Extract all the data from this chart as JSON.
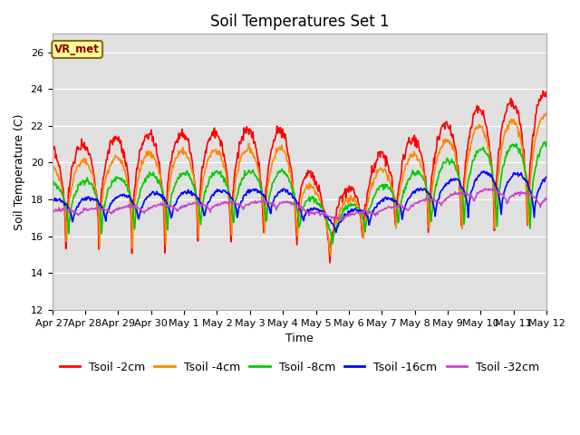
{
  "title": "Soil Temperatures Set 1",
  "xlabel": "Time",
  "ylabel": "Soil Temperature (C)",
  "ylim": [
    12,
    27
  ],
  "yticks": [
    12,
    14,
    16,
    18,
    20,
    22,
    24,
    26
  ],
  "background_color": "#ffffff",
  "plot_bg_color": "#e0e0e0",
  "annotation_label": "VR_met",
  "line_colors": {
    "2cm": "#ff0000",
    "4cm": "#ff8800",
    "8cm": "#00cc00",
    "16cm": "#0000ff",
    "32cm": "#cc44cc"
  },
  "legend_labels": [
    "Tsoil -2cm",
    "Tsoil -4cm",
    "Tsoil -8cm",
    "Tsoil -16cm",
    "Tsoil -32cm"
  ],
  "x_tick_labels": [
    "Apr 27",
    "Apr 28",
    "Apr 29",
    "Apr 30",
    "May 1",
    "May 2",
    "May 3",
    "May 4",
    "May 5",
    "May 6",
    "May 7",
    "May 8",
    "May 9",
    "May 10",
    "May 11",
    "May 12"
  ],
  "n_days": 16,
  "pts_per_day": 48,
  "title_fontsize": 12,
  "axis_label_fontsize": 9,
  "tick_fontsize": 8,
  "legend_fontsize": 9,
  "linewidth": 1.2
}
